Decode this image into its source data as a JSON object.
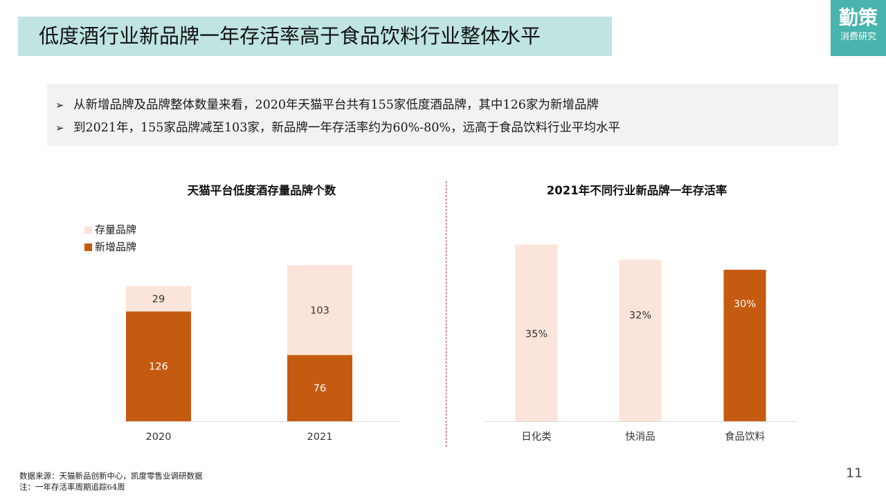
{
  "header": {
    "title": "低度酒行业新品牌一年存活率高于食品饮料行业整体水平",
    "logo_main": "勤策",
    "logo_sub": "消费研究"
  },
  "summary": {
    "bullet_mark": "➢",
    "bullets": [
      "从新增品牌及品牌整体数量来看，2020年天猫平台共有155家低度酒品牌，其中126家为新增品牌",
      "到2021年，155家品牌减至103家，新品牌一年存活率约为60%-80%，远高于食品饮料行业平均水平"
    ]
  },
  "colors": {
    "light_bar": "#fbe4d9",
    "dark_bar": "#c55a11",
    "axis": "#d9d9d9",
    "divider": "#c4262e",
    "title_bg": "#bfe4e2",
    "logo_bg": "#49b3ad"
  },
  "chart_data": [
    {
      "type": "bar",
      "stacked": true,
      "title": "天猫平台低度酒存量品牌个数",
      "categories": [
        "2020",
        "2021"
      ],
      "series": [
        {
          "name": "新增品牌",
          "values": [
            126,
            76
          ]
        },
        {
          "name": "存量品牌",
          "values": [
            29,
            103
          ]
        }
      ],
      "data_labels": true,
      "legend": "top-left",
      "ylim": [
        0,
        190
      ],
      "grid": false
    },
    {
      "type": "bar",
      "title": "2021年不同行业新品牌一年存活率",
      "categories": [
        "日化类",
        "快消品",
        "食品饮料"
      ],
      "values": [
        35,
        32,
        30
      ],
      "value_labels": [
        "35%",
        "32%",
        "30%"
      ],
      "bar_colors": [
        "#fbe4d9",
        "#fbe4d9",
        "#c55a11"
      ],
      "grid": false
    }
  ],
  "footer": {
    "source": "数据来源：天猫新品创新中心，凯度零售业调研数据",
    "note": "注：一年存活率周期追踪64周",
    "page_number": "11"
  }
}
